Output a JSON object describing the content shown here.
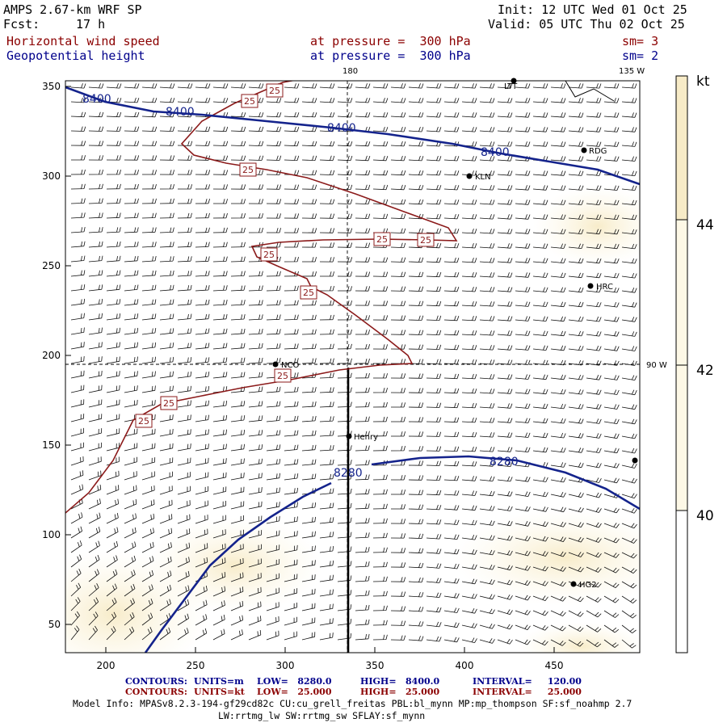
{
  "header": {
    "model": "AMPS 2.67-km WRF SP",
    "fcst_label": "Fcst:",
    "fcst_value": "17 h",
    "init": "Init: 12 UTC Wed 01 Oct 25",
    "valid": "Valid: 05 UTC Thu 02 Oct 25",
    "field1_name": "Horizontal wind speed",
    "field1_level": "at pressure =  300 hPa",
    "field1_sm": "sm= 3",
    "field2_name": "Geopotential height",
    "field2_level": "at pressure =  300 hPa",
    "field2_sm": "sm= 2"
  },
  "map": {
    "x_ticks": [
      "200",
      "250",
      "300",
      "350",
      "400",
      "450"
    ],
    "y_ticks": [
      "350",
      "300",
      "250",
      "200",
      "150",
      "100",
      "50"
    ],
    "meridian_labels": {
      "top_180": "180",
      "top_135w": "135 W",
      "right_90w": "90 W"
    },
    "stations": [
      {
        "name": "RDG"
      },
      {
        "name": "KLN"
      },
      {
        "name": "HRC"
      },
      {
        "name": "NCO"
      },
      {
        "name": "Henry"
      },
      {
        "name": "HG2"
      },
      {
        "name": "LTT"
      }
    ],
    "height_contour_labels": [
      "8400",
      "8400",
      "8400",
      "8400",
      "8280",
      "8280"
    ],
    "speed_contour_label": "25"
  },
  "colorbar": {
    "unit": "kt",
    "labels": [
      "44",
      "42",
      "40"
    ],
    "colors": {
      "bottom": "#ffffff",
      "mid": "#fdf8e6",
      "top": "#f7ebc7"
    }
  },
  "footer": {
    "row1": {
      "label": "CONTOURS:",
      "units": "UNITS=m",
      "low": "LOW=   8280.0",
      "high": "HIGH=   8400.0",
      "interval": "INTERVAL=     120.00"
    },
    "row2": {
      "label": "CONTOURS:",
      "units": "UNITS=kt",
      "low": "LOW=   25.000",
      "high": "HIGH=   25.000",
      "interval": "INTERVAL=     25.000"
    },
    "model_info": "Model Info: MPASv8.2.3-194-gf29cd82c CU:cu_grell_freitas PBL:bl_mynn MP:mp_thompson SF:sf_noahmp 2.7",
    "model_info2": "LW:rrtmg_lw SW:rrtmg_sw SFLAY:sf_mynn"
  },
  "colors": {
    "height_contour": "#14238c",
    "speed_contour": "#8b1a1a",
    "frame": "#000000"
  }
}
